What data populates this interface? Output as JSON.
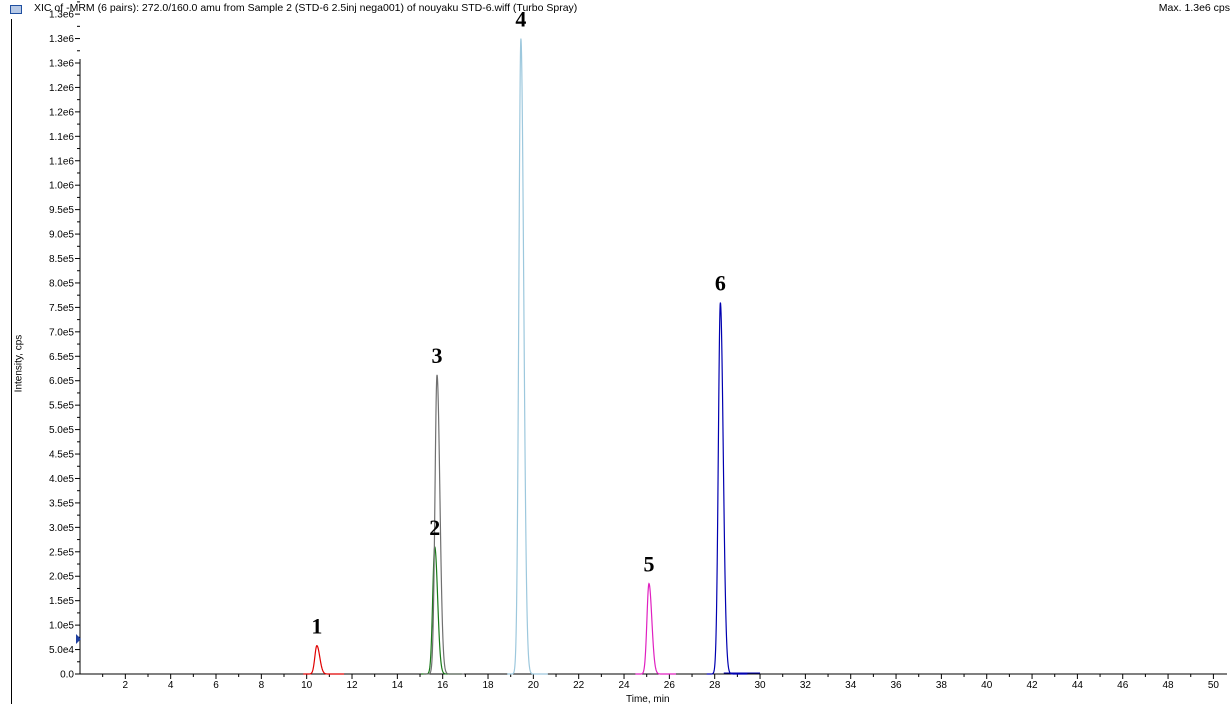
{
  "header": {
    "title": "XIC of -MRM (6 pairs): 272.0/160.0 amu from Sample 2 (STD-6 2.5inj nega001) of nouyaku STD-6.wiff (Turbo Spray)",
    "max_label": "Max. 1.3e6 cps"
  },
  "chart_data": {
    "type": "line",
    "xlabel": "Time, min",
    "ylabel": "Intensity, cps",
    "xlim": [
      0,
      50.6
    ],
    "ylim": [
      0,
      1340000
    ],
    "x_ticks": [
      "2",
      "4",
      "6",
      "8",
      "10",
      "12",
      "14",
      "16",
      "18",
      "20",
      "22",
      "24",
      "26",
      "28",
      "30",
      "32",
      "34",
      "36",
      "38",
      "40",
      "42",
      "44",
      "46",
      "48",
      "50"
    ],
    "y_ticks": [
      "0.0",
      "5.0e4",
      "1.0e5",
      "1.5e5",
      "2.0e5",
      "2.5e5",
      "3.0e5",
      "3.5e5",
      "4.0e5",
      "4.5e5",
      "5.0e5",
      "5.5e5",
      "6.0e5",
      "6.5e5",
      "7.0e5",
      "7.5e5",
      "8.0e5",
      "8.5e5",
      "9.0e5",
      "9.5e5",
      "1.0e6",
      "1.1e6",
      "1.1e6",
      "1.2e6",
      "1.2e6",
      "1.3e6",
      "1.3e6",
      "1.3e6"
    ],
    "grid": false,
    "series": [
      {
        "label": "1",
        "color": "#e00000",
        "rt": 10.45,
        "height": 58000
      },
      {
        "label": "2",
        "color": "#1a7a1a",
        "rt": 15.65,
        "height": 260000
      },
      {
        "label": "3",
        "color": "#707070",
        "rt": 15.75,
        "height": 612000
      },
      {
        "label": "4",
        "color": "#9dc8dd",
        "rt": 19.45,
        "height": 1300000
      },
      {
        "label": "5",
        "color": "#e020c0",
        "rt": 25.1,
        "height": 185000
      },
      {
        "label": "6",
        "color": "#0000b0",
        "rt": 28.25,
        "height": 760000
      }
    ]
  }
}
